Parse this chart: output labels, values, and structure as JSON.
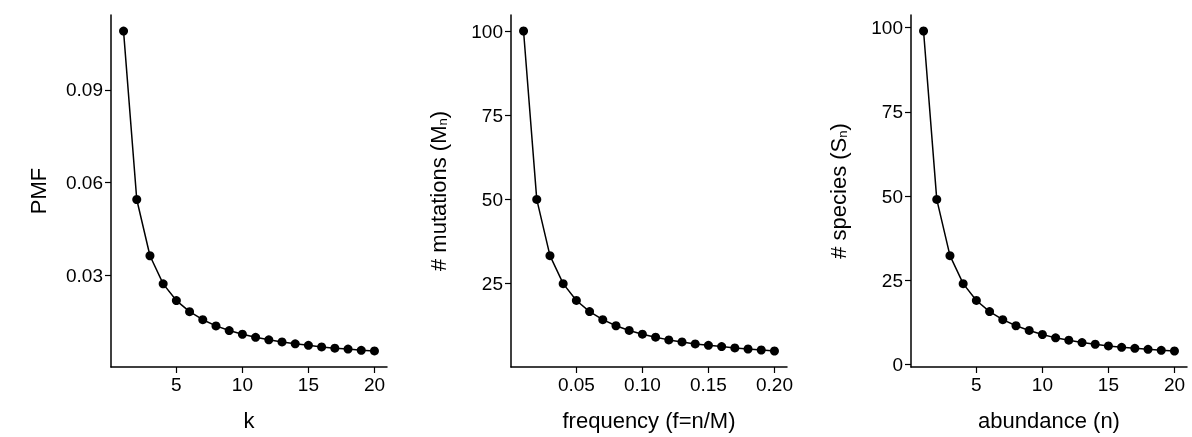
{
  "chart_data": [
    {
      "type": "line",
      "xlabel": "k",
      "ylabel": "PMF",
      "marker": "circle",
      "line_style": "solid",
      "x": [
        1,
        2,
        3,
        4,
        5,
        6,
        7,
        8,
        9,
        10,
        11,
        12,
        13,
        14,
        15,
        16,
        17,
        18,
        19,
        20
      ],
      "series": [
        {
          "color": "#000000",
          "values": [
            0.109,
            0.0545,
            0.0363,
            0.0272,
            0.0218,
            0.0182,
            0.0156,
            0.0136,
            0.0121,
            0.0109,
            0.0099,
            0.0091,
            0.0084,
            0.0078,
            0.0073,
            0.0068,
            0.0064,
            0.0061,
            0.0057,
            0.0055
          ]
        }
      ],
      "xlim": [
        0.05,
        20.95
      ],
      "xticks": [
        5,
        10,
        15,
        20
      ],
      "ylim": [
        0.0003,
        0.1142
      ],
      "yticks": [
        0.03,
        0.06,
        0.09
      ]
    },
    {
      "type": "line",
      "xlabel": "frequency (f=n/M)",
      "ylabel": "# mutations (M$_{n}$)",
      "marker": "circle",
      "line_style": "solid",
      "x": [
        0.01,
        0.02,
        0.03,
        0.04,
        0.05,
        0.06,
        0.07,
        0.08,
        0.09,
        0.1,
        0.11,
        0.12,
        0.13,
        0.14,
        0.15,
        0.16,
        0.17,
        0.18,
        0.19,
        0.2
      ],
      "series": [
        {
          "color": "#000000",
          "values": [
            100,
            50,
            33.3,
            25,
            20,
            16.7,
            14.3,
            12.5,
            11.1,
            10,
            9.1,
            8.3,
            7.7,
            7.1,
            6.7,
            6.3,
            5.9,
            5.6,
            5.3,
            5
          ]
        }
      ],
      "xlim": [
        0.0005,
        0.2095
      ],
      "xticks": [
        0.05,
        {
          "value": 0.1,
          "label": "0.10"
        },
        0.15,
        {
          "value": 0.2,
          "label": "0.20"
        }
      ],
      "ylim": [
        0.25,
        104.75
      ],
      "yticks": [
        25,
        50,
        75,
        100
      ]
    },
    {
      "type": "line",
      "xlabel": "abundance (n)",
      "ylabel": "# species (S$_{n}$)",
      "marker": "circle",
      "line_style": "solid",
      "x": [
        1,
        2,
        3,
        4,
        5,
        6,
        7,
        8,
        9,
        10,
        11,
        12,
        13,
        14,
        15,
        16,
        17,
        18,
        19,
        20
      ],
      "series": [
        {
          "color": "#000000",
          "values": [
            99,
            49,
            32.3,
            24,
            19,
            15.7,
            13.3,
            11.5,
            10.1,
            8.9,
            7.9,
            7.2,
            6.5,
            6.0,
            5.5,
            5.1,
            4.8,
            4.5,
            4.2,
            4.0
          ]
        }
      ],
      "xlim": [
        0.05,
        20.95
      ],
      "xticks": [
        5,
        10,
        15,
        20
      ],
      "ylim": [
        -0.75,
        103.75
      ],
      "yticks": [
        0,
        25,
        50,
        75,
        100
      ]
    }
  ]
}
